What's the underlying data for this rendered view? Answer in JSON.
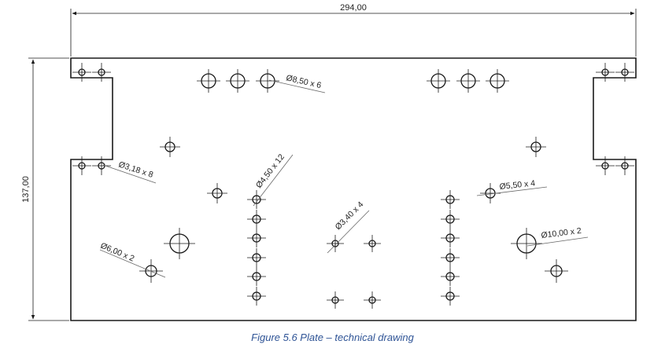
{
  "drawing": {
    "units": "mm",
    "overall_width": "294,00",
    "overall_height": "137,00",
    "hole_callouts": {
      "d8_50": "Ø8,50 x 6",
      "d3_18": "Ø3,18 x 8",
      "d4_50": "Ø4,50 x 12",
      "d3_40": "Ø3,40 x 4",
      "d5_50": "Ø5,50 x 4",
      "d6_00": "Ø6,00 x 2",
      "d10_00": "Ø10,00 x 2"
    }
  },
  "caption": "Figure 5.6 Plate – technical drawing",
  "colors": {
    "line": "#1a1a1a",
    "leader": "#666666",
    "caption": "#2f5496"
  }
}
